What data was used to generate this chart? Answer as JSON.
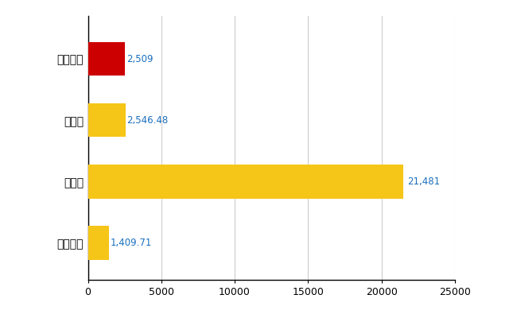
{
  "categories": [
    "廿日市市",
    "県平均",
    "県最大",
    "全国平均"
  ],
  "values": [
    2509,
    2546.48,
    21481,
    1409.71
  ],
  "labels": [
    "2,509",
    "2,546.48",
    "21,481",
    "1,409.71"
  ],
  "colors": [
    "#cc0000",
    "#f5c518",
    "#f5c518",
    "#f5c518"
  ],
  "xlim": [
    0,
    25000
  ],
  "xticks": [
    0,
    5000,
    10000,
    15000,
    20000,
    25000
  ],
  "xtick_labels": [
    "0",
    "5000",
    "10000",
    "15000",
    "20000",
    "25000"
  ],
  "background_color": "#ffffff",
  "grid_color": "#cccccc",
  "label_color": "#1a6fbe",
  "bar_height": 0.55
}
